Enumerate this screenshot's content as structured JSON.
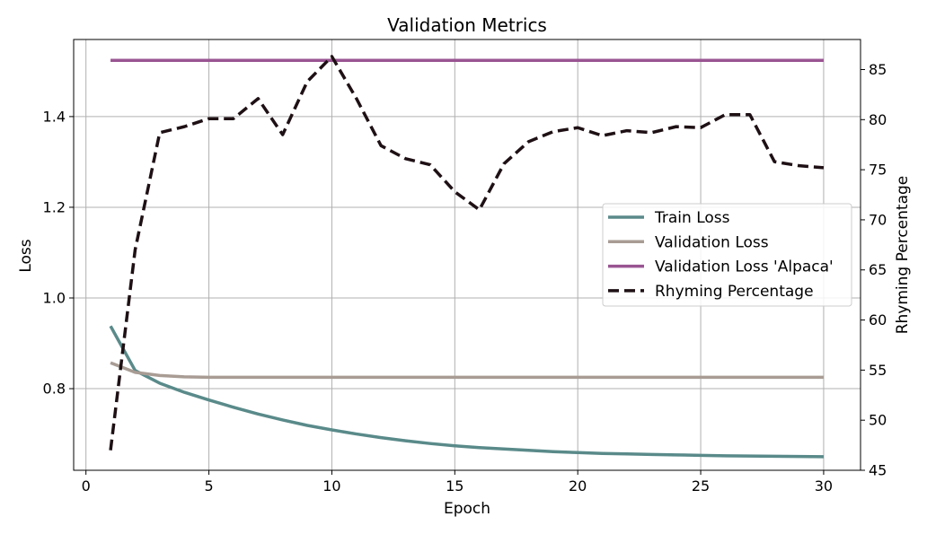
{
  "chart_data": {
    "type": "line",
    "title": "Validation Metrics",
    "xlabel": "Epoch",
    "ylabel": "Loss",
    "y2label": "Rhyming Percentage",
    "xlim": [
      -0.5,
      31.5
    ],
    "ylim": [
      0.62,
      1.57
    ],
    "y2lim": [
      45,
      88
    ],
    "x_ticks": [
      "0",
      "5",
      "10",
      "15",
      "20",
      "25",
      "30"
    ],
    "y_ticks": [
      "0.8",
      "1.0",
      "1.2",
      "1.4"
    ],
    "y2_ticks": [
      "45",
      "50",
      "55",
      "60",
      "65",
      "70",
      "75",
      "80",
      "85"
    ],
    "grid": true,
    "legend_position": "center-right",
    "x": [
      1,
      2,
      3,
      4,
      5,
      6,
      7,
      8,
      9,
      10,
      11,
      12,
      13,
      14,
      15,
      16,
      17,
      18,
      19,
      20,
      21,
      22,
      23,
      24,
      25,
      26,
      27,
      28,
      29,
      30
    ],
    "series": [
      {
        "name": "Train Loss",
        "axis": "left",
        "color": "#5a8a8a",
        "dash": "solid",
        "values": [
          0.938,
          0.84,
          0.812,
          0.792,
          0.775,
          0.759,
          0.744,
          0.731,
          0.719,
          0.709,
          0.7,
          0.692,
          0.685,
          0.679,
          0.674,
          0.67,
          0.667,
          0.664,
          0.661,
          0.659,
          0.657,
          0.656,
          0.655,
          0.654,
          0.653,
          0.652,
          0.6515,
          0.651,
          0.6505,
          0.65
        ]
      },
      {
        "name": "Validation Loss",
        "axis": "left",
        "color": "#a89c94",
        "dash": "solid",
        "values": [
          0.857,
          0.836,
          0.829,
          0.826,
          0.825,
          0.825,
          0.825,
          0.825,
          0.825,
          0.825,
          0.825,
          0.825,
          0.825,
          0.825,
          0.825,
          0.825,
          0.825,
          0.825,
          0.825,
          0.825,
          0.825,
          0.825,
          0.825,
          0.825,
          0.825,
          0.825,
          0.825,
          0.825,
          0.825,
          0.825
        ]
      },
      {
        "name": "Validation Loss 'Alpaca'",
        "axis": "left",
        "color": "#9a5492",
        "dash": "solid",
        "values": [
          1.524,
          1.524,
          1.524,
          1.524,
          1.524,
          1.524,
          1.524,
          1.524,
          1.524,
          1.524,
          1.524,
          1.524,
          1.524,
          1.524,
          1.524,
          1.524,
          1.524,
          1.524,
          1.524,
          1.524,
          1.524,
          1.524,
          1.524,
          1.524,
          1.524,
          1.524,
          1.524,
          1.524,
          1.524,
          1.524
        ]
      },
      {
        "name": "Rhyming Percentage",
        "axis": "right",
        "color": "#1e1014",
        "dash": "dashed",
        "values": [
          47,
          67,
          78.7,
          79.3,
          80.1,
          80.1,
          82.1,
          78.5,
          83.8,
          86.3,
          82.1,
          77.4,
          76.1,
          75.5,
          72.8,
          71,
          75.6,
          77.8,
          78.8,
          79.2,
          78.4,
          78.9,
          78.7,
          79.3,
          79.2,
          80.5,
          80.5,
          75.8,
          75.4,
          75.2
        ]
      }
    ]
  }
}
